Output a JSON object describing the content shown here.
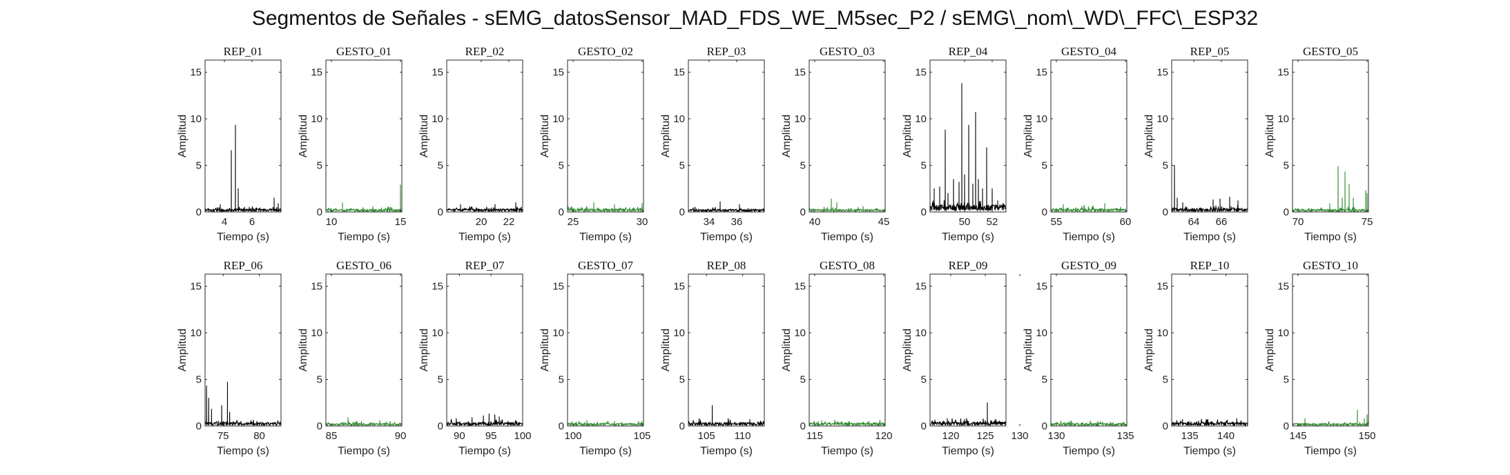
{
  "figure_title": "Segmentos de Señales - sEMG_datosSensor_MAD_FDS_WE_M5sec_P2 / sEMG\\_nom\\_WD\\_FFC\\_ESP32",
  "colors": {
    "rep": "#000000",
    "gesto": "#2e8b2e",
    "axis": "#262626"
  },
  "chart_data": [
    {
      "type": "line",
      "title": "REP_01",
      "xlabel": "Tiempo (s)",
      "ylabel": "Amplitud",
      "xlim": [
        2.6,
        8.1
      ],
      "ylim": [
        0,
        16.3
      ],
      "xticks": [
        4,
        6
      ],
      "yticks": [
        0,
        5,
        10,
        15
      ],
      "color": "rep",
      "baseline": 0.35,
      "peaks": [
        [
          3.7,
          0.8
        ],
        [
          4.5,
          6.6
        ],
        [
          4.8,
          9.3
        ],
        [
          5.0,
          2.5
        ],
        [
          7.6,
          1.5
        ],
        [
          7.9,
          0.9
        ]
      ]
    },
    {
      "type": "line",
      "title": "GESTO_01",
      "xlabel": "Tiempo (s)",
      "ylabel": "Amplitud",
      "xlim": [
        9.6,
        15.1
      ],
      "ylim": [
        0,
        16.3
      ],
      "xticks": [
        10,
        15
      ],
      "yticks": [
        0,
        5,
        10,
        15
      ],
      "color": "gesto",
      "baseline": 0.3,
      "peaks": [
        [
          10.8,
          1.0
        ],
        [
          13.0,
          0.6
        ],
        [
          15.0,
          2.9
        ]
      ]
    },
    {
      "type": "line",
      "title": "REP_02",
      "xlabel": "Tiempo (s)",
      "ylabel": "Amplitud",
      "xlim": [
        17.5,
        23.0
      ],
      "ylim": [
        0,
        16.3
      ],
      "xticks": [
        20,
        22
      ],
      "yticks": [
        0,
        5,
        10,
        15
      ],
      "color": "rep",
      "baseline": 0.35,
      "peaks": [
        [
          18.5,
          0.8
        ],
        [
          21.0,
          0.8
        ],
        [
          22.5,
          1.0
        ]
      ]
    },
    {
      "type": "line",
      "title": "GESTO_02",
      "xlabel": "Tiempo (s)",
      "ylabel": "Amplitud",
      "xlim": [
        24.6,
        30.1
      ],
      "ylim": [
        0,
        16.3
      ],
      "xticks": [
        25,
        30
      ],
      "yticks": [
        0,
        5,
        10,
        15
      ],
      "color": "gesto",
      "baseline": 0.35,
      "peaks": [
        [
          26.5,
          1.0
        ],
        [
          28.0,
          0.8
        ],
        [
          30.0,
          0.9
        ]
      ]
    },
    {
      "type": "line",
      "title": "REP_03",
      "xlabel": "Tiempo (s)",
      "ylabel": "Amplitud",
      "xlim": [
        32.5,
        38.0
      ],
      "ylim": [
        0,
        16.3
      ],
      "xticks": [
        34,
        36
      ],
      "yticks": [
        0,
        5,
        10,
        15
      ],
      "color": "rep",
      "baseline": 0.3,
      "peaks": [
        [
          34.8,
          1.1
        ],
        [
          36.2,
          0.8
        ]
      ]
    },
    {
      "type": "line",
      "title": "GESTO_03",
      "xlabel": "Tiempo (s)",
      "ylabel": "Amplitud",
      "xlim": [
        39.6,
        45.1
      ],
      "ylim": [
        0,
        16.3
      ],
      "xticks": [
        40,
        45
      ],
      "yticks": [
        0,
        5,
        10,
        15
      ],
      "color": "gesto",
      "baseline": 0.3,
      "peaks": [
        [
          41.2,
          1.4
        ],
        [
          41.6,
          1.0
        ],
        [
          43.5,
          0.6
        ]
      ]
    },
    {
      "type": "line",
      "title": "REP_04",
      "xlabel": "Tiempo (s)",
      "ylabel": "Amplitud",
      "xlim": [
        47.5,
        53.0
      ],
      "ylim": [
        0,
        16.3
      ],
      "xticks": [
        50,
        52
      ],
      "yticks": [
        0,
        5,
        10,
        15
      ],
      "color": "rep",
      "baseline": 0.8,
      "peaks": [
        [
          47.8,
          2.5
        ],
        [
          48.2,
          2.7
        ],
        [
          48.6,
          8.8
        ],
        [
          48.8,
          2.0
        ],
        [
          49.2,
          3.5
        ],
        [
          49.6,
          3.2
        ],
        [
          49.8,
          13.8
        ],
        [
          50.0,
          4.0
        ],
        [
          50.3,
          9.3
        ],
        [
          50.6,
          3.0
        ],
        [
          50.8,
          10.7
        ],
        [
          51.0,
          3.5
        ],
        [
          51.3,
          2.5
        ],
        [
          51.6,
          6.9
        ],
        [
          52.0,
          2.5
        ],
        [
          52.4,
          1.2
        ]
      ]
    },
    {
      "type": "line",
      "title": "GESTO_04",
      "xlabel": "Tiempo (s)",
      "ylabel": "Amplitud",
      "xlim": [
        54.6,
        60.1
      ],
      "ylim": [
        0,
        16.3
      ],
      "xticks": [
        55,
        60
      ],
      "yticks": [
        0,
        5,
        10,
        15
      ],
      "color": "gesto",
      "baseline": 0.35,
      "peaks": [
        [
          55.5,
          0.8
        ],
        [
          57.0,
          0.7
        ],
        [
          58.5,
          0.9
        ]
      ]
    },
    {
      "type": "line",
      "title": "REP_05",
      "xlabel": "Tiempo (s)",
      "ylabel": "Amplitud",
      "xlim": [
        62.4,
        67.9
      ],
      "ylim": [
        0,
        16.3
      ],
      "xticks": [
        64,
        66
      ],
      "yticks": [
        0,
        5,
        10,
        15
      ],
      "color": "rep",
      "baseline": 0.4,
      "peaks": [
        [
          62.6,
          5.0
        ],
        [
          62.8,
          1.5
        ],
        [
          63.2,
          1.0
        ],
        [
          65.4,
          1.3
        ],
        [
          65.9,
          1.4
        ],
        [
          66.6,
          1.6
        ],
        [
          67.2,
          1.2
        ]
      ]
    },
    {
      "type": "line",
      "title": "GESTO_05",
      "xlabel": "Tiempo (s)",
      "ylabel": "Amplitud",
      "xlim": [
        69.6,
        75.1
      ],
      "ylim": [
        0,
        16.3
      ],
      "xticks": [
        70,
        75
      ],
      "yticks": [
        0,
        5,
        10,
        15
      ],
      "color": "gesto",
      "baseline": 0.3,
      "peaks": [
        [
          72.3,
          0.9
        ],
        [
          72.9,
          4.9
        ],
        [
          73.2,
          1.5
        ],
        [
          73.4,
          4.3
        ],
        [
          73.7,
          3.0
        ],
        [
          74.0,
          1.5
        ],
        [
          74.9,
          2.3
        ],
        [
          75.0,
          2.0
        ]
      ]
    },
    {
      "type": "line",
      "title": "REP_06",
      "xlabel": "Tiempo (s)",
      "ylabel": "Amplitud",
      "xlim": [
        72.5,
        83.0
      ],
      "ylim": [
        0,
        16.3
      ],
      "xticks": [
        75,
        80
      ],
      "yticks": [
        0,
        5,
        10,
        15
      ],
      "color": "rep",
      "baseline": 0.4,
      "peaks": [
        [
          72.7,
          4.3
        ],
        [
          73.0,
          3.0
        ],
        [
          73.4,
          1.8
        ],
        [
          74.8,
          2.2
        ],
        [
          75.6,
          4.7
        ],
        [
          75.9,
          1.5
        ]
      ]
    },
    {
      "type": "line",
      "title": "GESTO_06",
      "xlabel": "Tiempo (s)",
      "ylabel": "Amplitud",
      "xlim": [
        84.6,
        90.1
      ],
      "ylim": [
        0,
        16.3
      ],
      "xticks": [
        85,
        90
      ],
      "yticks": [
        0,
        5,
        10,
        15
      ],
      "color": "gesto",
      "baseline": 0.3,
      "peaks": [
        [
          86.2,
          0.9
        ],
        [
          88.5,
          0.6
        ]
      ]
    },
    {
      "type": "line",
      "title": "REP_07",
      "xlabel": "Tiempo (s)",
      "ylabel": "Amplitud",
      "xlim": [
        88.0,
        100.0
      ],
      "ylim": [
        0,
        16.3
      ],
      "xticks": [
        90,
        95,
        100
      ],
      "yticks": [
        0,
        5,
        10,
        15
      ],
      "color": "rep",
      "baseline": 0.4,
      "peaks": [
        [
          89.5,
          0.8
        ],
        [
          92.0,
          0.9
        ],
        [
          93.8,
          1.1
        ],
        [
          94.7,
          1.3
        ],
        [
          95.6,
          1.2
        ],
        [
          96.3,
          1.0
        ]
      ]
    },
    {
      "type": "line",
      "title": "GESTO_07",
      "xlabel": "Tiempo (s)",
      "ylabel": "Amplitud",
      "xlim": [
        99.6,
        105.1
      ],
      "ylim": [
        0,
        16.3
      ],
      "xticks": [
        100,
        105
      ],
      "yticks": [
        0,
        5,
        10,
        15
      ],
      "color": "gesto",
      "baseline": 0.3,
      "peaks": [
        [
          101.0,
          0.6
        ],
        [
          103.0,
          0.5
        ]
      ]
    },
    {
      "type": "line",
      "title": "REP_08",
      "xlabel": "Tiempo (s)",
      "ylabel": "Amplitud",
      "xlim": [
        102.5,
        113.0
      ],
      "ylim": [
        0,
        16.3
      ],
      "xticks": [
        105,
        110
      ],
      "yticks": [
        0,
        5,
        10,
        15
      ],
      "color": "rep",
      "baseline": 0.4,
      "peaks": [
        [
          104.0,
          0.8
        ],
        [
          105.8,
          2.2
        ],
        [
          108.0,
          0.8
        ],
        [
          111.0,
          0.7
        ]
      ]
    },
    {
      "type": "line",
      "title": "GESTO_08",
      "xlabel": "Tiempo (s)",
      "ylabel": "Amplitud",
      "xlim": [
        114.6,
        120.1
      ],
      "ylim": [
        0,
        16.3
      ],
      "xticks": [
        115,
        120
      ],
      "yticks": [
        0,
        5,
        10,
        15
      ],
      "color": "gesto",
      "baseline": 0.35,
      "peaks": [
        [
          115.5,
          0.6
        ],
        [
          117.5,
          0.5
        ]
      ]
    },
    {
      "type": "line",
      "title": "REP_09",
      "xlabel": "Tiempo (s)",
      "ylabel": "Amplitud",
      "xlim": [
        117.0,
        128.0
      ],
      "ylim": [
        0,
        16.3
      ],
      "xticks": [
        120,
        125,
        130
      ],
      "yticks": [
        0,
        5,
        10,
        15
      ],
      "color": "rep",
      "baseline": 0.45,
      "peaks": [
        [
          119.5,
          0.8
        ],
        [
          122.0,
          0.7
        ],
        [
          125.3,
          2.5
        ],
        [
          126.5,
          0.7
        ]
      ]
    },
    {
      "type": "line",
      "title": "GESTO_09",
      "xlabel": "Tiempo (s)",
      "ylabel": "Amplitud",
      "xlim": [
        129.6,
        135.1
      ],
      "ylim": [
        0,
        16.3
      ],
      "xticks": [
        130,
        135
      ],
      "yticks": [
        0,
        5,
        10,
        15
      ],
      "color": "gesto",
      "baseline": 0.3,
      "peaks": [
        [
          131.0,
          0.5
        ],
        [
          133.0,
          0.5
        ]
      ]
    },
    {
      "type": "line",
      "title": "REP_10",
      "xlabel": "Tiempo (s)",
      "ylabel": "Amplitud",
      "xlim": [
        132.5,
        143.0
      ],
      "ylim": [
        0,
        16.3
      ],
      "xticks": [
        135,
        140
      ],
      "yticks": [
        0,
        5,
        10,
        15
      ],
      "color": "rep",
      "baseline": 0.4,
      "peaks": [
        [
          134.0,
          0.7
        ],
        [
          137.5,
          0.7
        ],
        [
          141.5,
          0.8
        ]
      ]
    },
    {
      "type": "line",
      "title": "GESTO_10",
      "xlabel": "Tiempo (s)",
      "ylabel": "Amplitud",
      "xlim": [
        144.6,
        150.1
      ],
      "ylim": [
        0,
        16.3
      ],
      "xticks": [
        145,
        150
      ],
      "yticks": [
        0,
        5,
        10,
        15
      ],
      "color": "gesto",
      "baseline": 0.3,
      "peaks": [
        [
          145.5,
          0.8
        ],
        [
          149.3,
          1.7
        ],
        [
          149.8,
          0.8
        ],
        [
          150.0,
          1.2
        ]
      ]
    }
  ]
}
